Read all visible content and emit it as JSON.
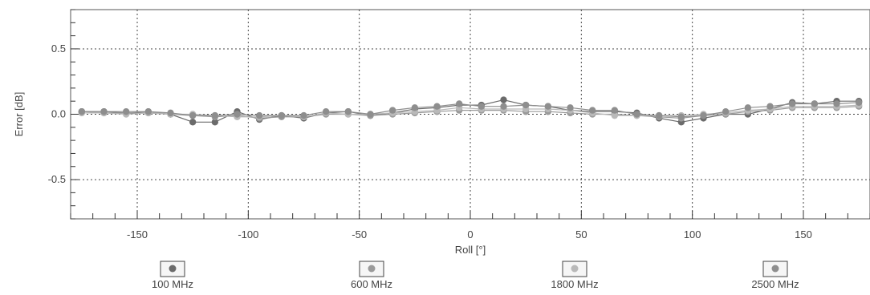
{
  "chart_data": {
    "type": "line",
    "title": "",
    "xlabel": "Roll [°]",
    "ylabel": "Error [dB]",
    "xlim": [
      -180,
      180
    ],
    "ylim": [
      -0.8,
      0.8
    ],
    "x_ticks": [
      -150,
      -100,
      -50,
      0,
      50,
      100,
      150
    ],
    "y_ticks": [
      -0.5,
      0.0,
      0.5
    ],
    "x_tick_labels": [
      "-150",
      "-100",
      "-50",
      "0",
      "50",
      "100",
      "150"
    ],
    "y_tick_labels": [
      "-0.5",
      "0.0",
      "0.5"
    ],
    "grid": true,
    "legend_position": "bottom",
    "x": [
      -175,
      -165,
      -155,
      -145,
      -135,
      -125,
      -115,
      -105,
      -95,
      -85,
      -75,
      -65,
      -55,
      -45,
      -35,
      -25,
      -15,
      -5,
      5,
      15,
      25,
      35,
      45,
      55,
      65,
      75,
      85,
      95,
      105,
      115,
      125,
      135,
      145,
      155,
      165,
      175
    ],
    "series": [
      {
        "name": "100 MHz",
        "color": "#6b6b6b",
        "values": [
          0.02,
          0.02,
          0.01,
          0.01,
          0.0,
          -0.06,
          -0.06,
          0.02,
          -0.04,
          -0.01,
          -0.03,
          0.01,
          0.02,
          -0.01,
          0.01,
          0.04,
          0.05,
          0.07,
          0.07,
          0.11,
          0.07,
          0.06,
          0.03,
          0.02,
          0.02,
          0.01,
          -0.03,
          -0.06,
          -0.03,
          0.0,
          0.0,
          0.04,
          0.09,
          0.08,
          0.1,
          0.1
        ]
      },
      {
        "name": "600 MHz",
        "color": "#9a9a9a",
        "values": [
          0.02,
          0.01,
          0.01,
          0.02,
          0.0,
          -0.01,
          -0.02,
          -0.01,
          -0.03,
          -0.02,
          -0.02,
          0.0,
          0.0,
          -0.01,
          0.0,
          0.01,
          0.02,
          0.03,
          0.03,
          0.03,
          0.02,
          0.02,
          0.01,
          0.0,
          0.0,
          -0.01,
          -0.02,
          -0.03,
          -0.01,
          0.0,
          0.02,
          0.03,
          0.05,
          0.05,
          0.05,
          0.06
        ]
      },
      {
        "name": "1800 MHz",
        "color": "#b9b9b9",
        "values": [
          0.01,
          0.01,
          0.0,
          0.01,
          0.0,
          0.0,
          -0.01,
          -0.02,
          -0.02,
          -0.01,
          -0.02,
          0.01,
          0.0,
          0.0,
          0.01,
          0.02,
          0.03,
          0.05,
          0.04,
          0.04,
          0.04,
          0.04,
          0.03,
          0.01,
          -0.01,
          -0.01,
          -0.01,
          -0.01,
          0.0,
          0.01,
          0.03,
          0.04,
          0.06,
          0.06,
          0.06,
          0.07
        ]
      },
      {
        "name": "2500 MHz",
        "color": "#8e8e8e",
        "values": [
          0.02,
          0.02,
          0.02,
          0.02,
          0.01,
          -0.01,
          -0.01,
          0.0,
          -0.01,
          -0.01,
          -0.01,
          0.02,
          0.02,
          0.0,
          0.03,
          0.05,
          0.06,
          0.08,
          0.06,
          0.06,
          0.07,
          0.06,
          0.05,
          0.03,
          0.03,
          0.0,
          -0.01,
          -0.02,
          -0.01,
          0.02,
          0.05,
          0.06,
          0.08,
          0.08,
          0.08,
          0.09
        ]
      }
    ]
  }
}
